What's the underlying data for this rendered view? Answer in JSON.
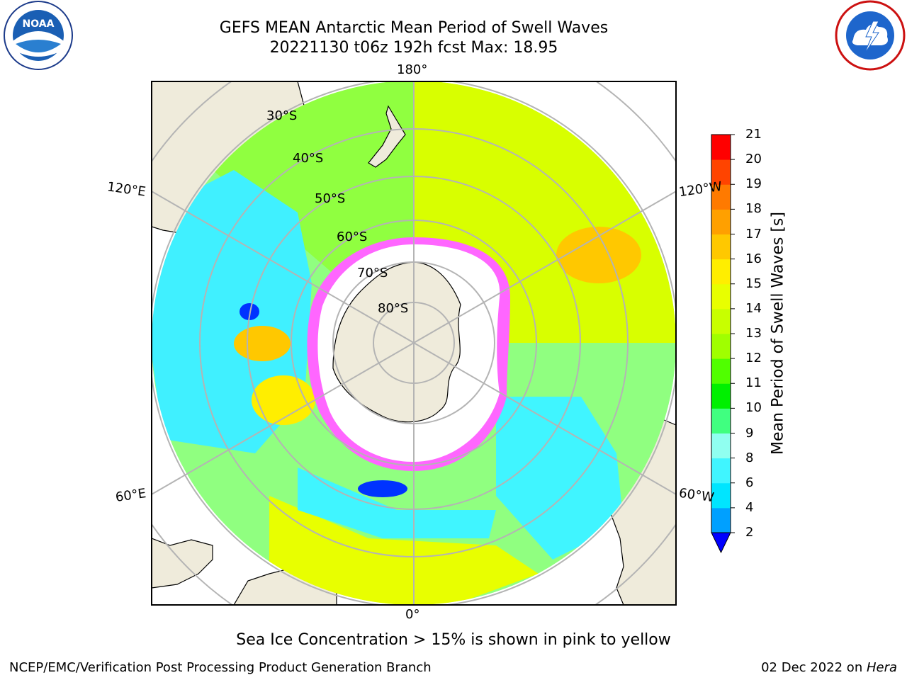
{
  "title": {
    "line1": "GEFS MEAN Antarctic Mean Period of Swell Waves",
    "line2": "20221130 t06z 192h fcst   Max: 18.95"
  },
  "map": {
    "projection": "south-polar-stereographic",
    "longitude_labels": {
      "top": "180°",
      "left_upper": "120°E",
      "right_upper": "120°W",
      "left_lower": "60°E",
      "right_lower": "60°W",
      "bottom": "0°"
    },
    "latitude_labels": [
      "30°S",
      "40°S",
      "50°S",
      "60°S",
      "70°S",
      "80°S"
    ]
  },
  "colorbar": {
    "title": "Mean Period of Swell Waves [s]",
    "ticks": [
      "2",
      "4",
      "6",
      "8",
      "9",
      "10",
      "11",
      "12",
      "13",
      "14",
      "15",
      "16",
      "17",
      "18",
      "19",
      "20",
      "21"
    ],
    "colors": [
      "#0033ff",
      "#00a0ff",
      "#00e5ff",
      "#40f5ff",
      "#90fff0",
      "#40ff80",
      "#00f000",
      "#50ff00",
      "#a0ff00",
      "#c8ff00",
      "#e8ff00",
      "#ffee00",
      "#ffc800",
      "#ffa000",
      "#ff7a00",
      "#ff4400",
      "#ff0000"
    ],
    "extend_color": "#0000ff"
  },
  "note": "Sea Ice Concentration > 15% is shown in pink to yellow",
  "footer": {
    "left": "NCEP/EMC/Verification Post Processing Product Generation Branch",
    "right_date": "02 Dec 2022 on ",
    "right_host": "Hera"
  },
  "logos": {
    "left": "noaa-logo",
    "right": "nws-logo"
  }
}
